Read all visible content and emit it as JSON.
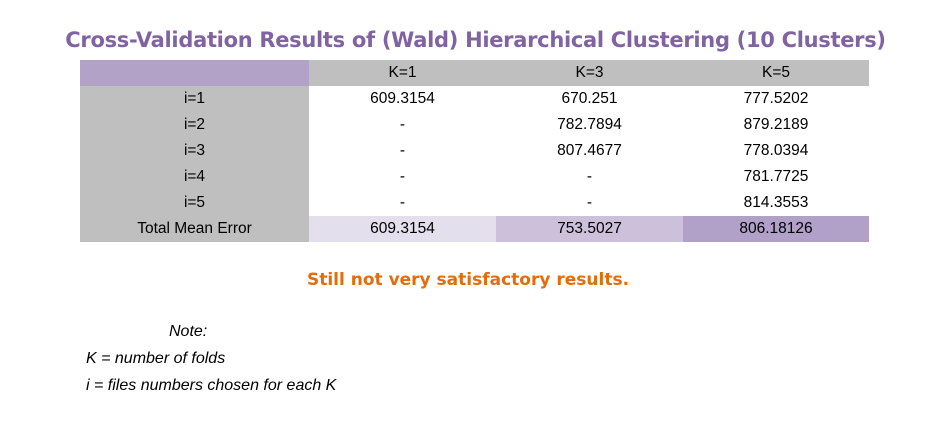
{
  "title": "Cross-Validation Results of (Wald) Hierarchical Clustering (10 Clusters)",
  "table": {
    "corner": "",
    "columns": [
      "K=1",
      "K=3",
      "K=5"
    ],
    "rows": [
      {
        "label": "i=1",
        "values": [
          "609.3154",
          "670.251",
          "777.5202"
        ]
      },
      {
        "label": "i=2",
        "values": [
          "-",
          "782.7894",
          "879.2189"
        ]
      },
      {
        "label": "i=3",
        "values": [
          "-",
          "807.4677",
          "778.0394"
        ]
      },
      {
        "label": "i=4",
        "values": [
          "-",
          "-",
          "781.7725"
        ]
      },
      {
        "label": "i=5",
        "values": [
          "-",
          "-",
          "814.3553"
        ]
      }
    ],
    "total": {
      "label": "Total Mean Error",
      "values": [
        "609.3154",
        "753.5027",
        "806.18126"
      ]
    }
  },
  "comment": "Still not very satisfactory results.",
  "note": {
    "heading": "Note:",
    "lines": [
      "K = number of folds",
      "i = files numbers chosen for each K"
    ]
  },
  "colors": {
    "title": "#8064a2",
    "header_accent": "#b3a2c7",
    "header_gray": "#bfbfbf",
    "total_k1": "#e4dfec",
    "total_k3": "#ccc0da",
    "total_k5": "#b1a0c7",
    "comment": "#e46c0a"
  }
}
